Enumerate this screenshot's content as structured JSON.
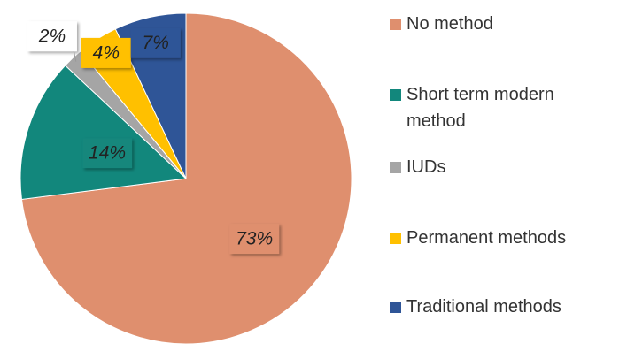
{
  "chart_data": {
    "type": "pie",
    "categories": [
      "No method",
      "Short term modern method",
      "IUDs",
      "Permanent methods",
      "Traditional methods"
    ],
    "values": [
      73,
      14,
      2,
      4,
      7
    ],
    "value_labels": [
      "73%",
      "14%",
      "2%",
      "4%",
      "7%"
    ],
    "colors": [
      "#df8f6e",
      "#12877c",
      "#a5a5a5",
      "#ffc000",
      "#2f5597"
    ],
    "legend": "right"
  }
}
